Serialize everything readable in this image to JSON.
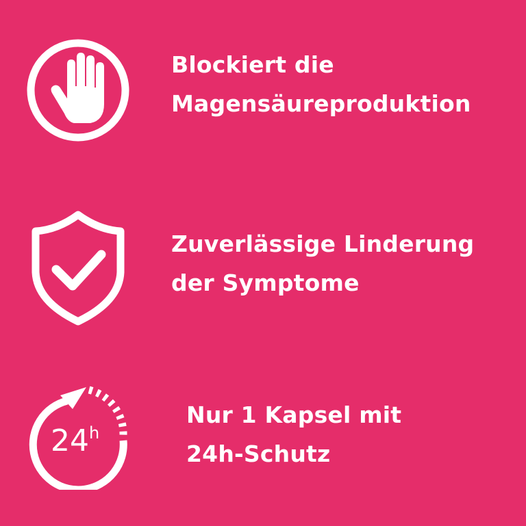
{
  "background_color": "#e52d6a",
  "features": [
    {
      "icon": "hand-stop-icon",
      "lines": [
        "Blockiert die",
        "Magensäureproduktion"
      ]
    },
    {
      "icon": "shield-check-icon",
      "lines": [
        "Zuverlässige Linderung",
        "der Symptome"
      ]
    },
    {
      "icon": "24h-clock-icon",
      "icon_text": "24",
      "icon_sup": "h",
      "lines": [
        "Nur 1 Kapsel mit",
        "24h-Schutz"
      ]
    }
  ]
}
